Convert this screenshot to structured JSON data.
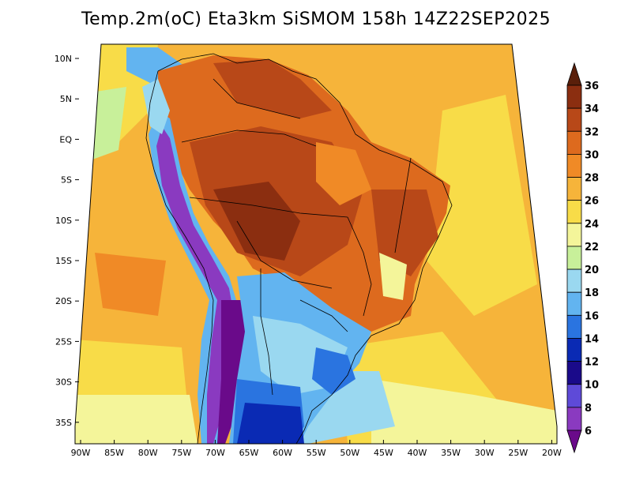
{
  "title": "Temp.2m(oC) Eta3km SiSMOM 158h 14Z22SEP2025",
  "lat_labels": [
    "10N",
    "5N",
    "EQ",
    "5S",
    "10S",
    "15S",
    "20S",
    "25S",
    "30S",
    "35S"
  ],
  "lon_labels": [
    "90W",
    "85W",
    "80W",
    "75W",
    "70W",
    "65W",
    "60W",
    "55W",
    "50W",
    "45W",
    "40W",
    "35W",
    "30W",
    "25W",
    "20W"
  ],
  "colorbar": {
    "labels": [
      "36",
      "34",
      "32",
      "30",
      "28",
      "26",
      "24",
      "22",
      "20",
      "18",
      "16",
      "14",
      "12",
      "10",
      "8",
      "6"
    ],
    "colors": [
      "#5a1f0a",
      "#8b2e10",
      "#b84818",
      "#dd6a1e",
      "#f08a26",
      "#f6b43a",
      "#f8dc48",
      "#f4f59a",
      "#c8f09a",
      "#9ad8f0",
      "#62b4f0",
      "#2a74e0",
      "#0a2ab4",
      "#1a0a8a",
      "#5e4ad8",
      "#8a3ac0",
      "#6a0a8a"
    ]
  }
}
